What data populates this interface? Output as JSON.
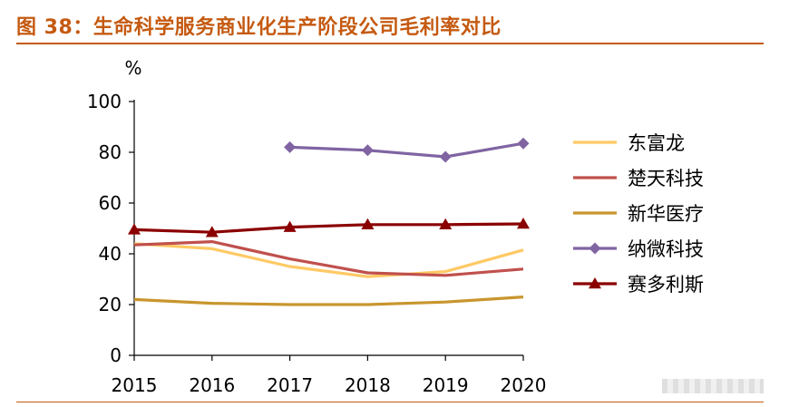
{
  "header": {
    "figure_title": "图 38：生命科学服务商业化生产阶段公司毛利率对比"
  },
  "chart_data": {
    "type": "line",
    "title": "图 38：生命科学服务商业化生产阶段公司毛利率对比",
    "ylabel": "%",
    "xlabel": "",
    "x": [
      "2015",
      "2016",
      "2017",
      "2018",
      "2019",
      "2020"
    ],
    "ylim": [
      0,
      100
    ],
    "yticks": [
      0,
      20,
      40,
      60,
      80,
      100
    ],
    "grid": false,
    "legend_position": "right",
    "series": [
      {
        "name": "东富龙",
        "color": "#FFC964",
        "marker": "none",
        "values": [
          44.0,
          42.0,
          35.0,
          31.0,
          33.0,
          41.5
        ]
      },
      {
        "name": "楚天科技",
        "color": "#C0504D",
        "marker": "none",
        "values": [
          43.5,
          44.8,
          38.0,
          32.5,
          31.5,
          34.0
        ]
      },
      {
        "name": "新华医疗",
        "color": "#C8962E",
        "marker": "none",
        "values": [
          22.0,
          20.5,
          20.0,
          20.0,
          21.0,
          23.0
        ]
      },
      {
        "name": "纳微科技",
        "color": "#8064A2",
        "marker": "diamond",
        "values": [
          null,
          null,
          82.0,
          80.8,
          78.2,
          83.5
        ]
      },
      {
        "name": "赛多利斯",
        "color": "#8B0000",
        "marker": "triangle",
        "values": [
          49.5,
          48.5,
          50.5,
          51.5,
          51.5,
          51.8
        ]
      }
    ]
  }
}
